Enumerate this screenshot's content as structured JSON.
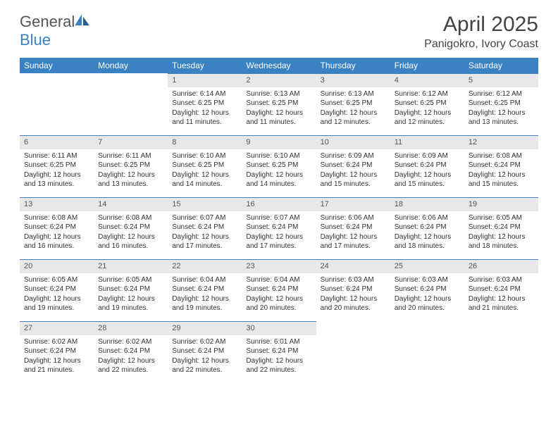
{
  "logo": {
    "text1": "General",
    "text2": "Blue"
  },
  "title": "April 2025",
  "location": "Panigokro, Ivory Coast",
  "colors": {
    "header_bg": "#3b82c4",
    "header_fg": "#ffffff",
    "daynum_bg": "#e8e8e8",
    "daynum_border": "#3b82c4",
    "body_bg": "#ffffff",
    "text": "#333333"
  },
  "weekdays": [
    "Sunday",
    "Monday",
    "Tuesday",
    "Wednesday",
    "Thursday",
    "Friday",
    "Saturday"
  ],
  "grid": {
    "rows": 5,
    "cols": 7,
    "first_weekday_index": 2,
    "days_in_month": 30
  },
  "days": [
    {
      "n": 1,
      "sunrise": "6:14 AM",
      "sunset": "6:25 PM",
      "daylight": "12 hours and 11 minutes."
    },
    {
      "n": 2,
      "sunrise": "6:13 AM",
      "sunset": "6:25 PM",
      "daylight": "12 hours and 11 minutes."
    },
    {
      "n": 3,
      "sunrise": "6:13 AM",
      "sunset": "6:25 PM",
      "daylight": "12 hours and 12 minutes."
    },
    {
      "n": 4,
      "sunrise": "6:12 AM",
      "sunset": "6:25 PM",
      "daylight": "12 hours and 12 minutes."
    },
    {
      "n": 5,
      "sunrise": "6:12 AM",
      "sunset": "6:25 PM",
      "daylight": "12 hours and 13 minutes."
    },
    {
      "n": 6,
      "sunrise": "6:11 AM",
      "sunset": "6:25 PM",
      "daylight": "12 hours and 13 minutes."
    },
    {
      "n": 7,
      "sunrise": "6:11 AM",
      "sunset": "6:25 PM",
      "daylight": "12 hours and 13 minutes."
    },
    {
      "n": 8,
      "sunrise": "6:10 AM",
      "sunset": "6:25 PM",
      "daylight": "12 hours and 14 minutes."
    },
    {
      "n": 9,
      "sunrise": "6:10 AM",
      "sunset": "6:25 PM",
      "daylight": "12 hours and 14 minutes."
    },
    {
      "n": 10,
      "sunrise": "6:09 AM",
      "sunset": "6:24 PM",
      "daylight": "12 hours and 15 minutes."
    },
    {
      "n": 11,
      "sunrise": "6:09 AM",
      "sunset": "6:24 PM",
      "daylight": "12 hours and 15 minutes."
    },
    {
      "n": 12,
      "sunrise": "6:08 AM",
      "sunset": "6:24 PM",
      "daylight": "12 hours and 15 minutes."
    },
    {
      "n": 13,
      "sunrise": "6:08 AM",
      "sunset": "6:24 PM",
      "daylight": "12 hours and 16 minutes."
    },
    {
      "n": 14,
      "sunrise": "6:08 AM",
      "sunset": "6:24 PM",
      "daylight": "12 hours and 16 minutes."
    },
    {
      "n": 15,
      "sunrise": "6:07 AM",
      "sunset": "6:24 PM",
      "daylight": "12 hours and 17 minutes."
    },
    {
      "n": 16,
      "sunrise": "6:07 AM",
      "sunset": "6:24 PM",
      "daylight": "12 hours and 17 minutes."
    },
    {
      "n": 17,
      "sunrise": "6:06 AM",
      "sunset": "6:24 PM",
      "daylight": "12 hours and 17 minutes."
    },
    {
      "n": 18,
      "sunrise": "6:06 AM",
      "sunset": "6:24 PM",
      "daylight": "12 hours and 18 minutes."
    },
    {
      "n": 19,
      "sunrise": "6:05 AM",
      "sunset": "6:24 PM",
      "daylight": "12 hours and 18 minutes."
    },
    {
      "n": 20,
      "sunrise": "6:05 AM",
      "sunset": "6:24 PM",
      "daylight": "12 hours and 19 minutes."
    },
    {
      "n": 21,
      "sunrise": "6:05 AM",
      "sunset": "6:24 PM",
      "daylight": "12 hours and 19 minutes."
    },
    {
      "n": 22,
      "sunrise": "6:04 AM",
      "sunset": "6:24 PM",
      "daylight": "12 hours and 19 minutes."
    },
    {
      "n": 23,
      "sunrise": "6:04 AM",
      "sunset": "6:24 PM",
      "daylight": "12 hours and 20 minutes."
    },
    {
      "n": 24,
      "sunrise": "6:03 AM",
      "sunset": "6:24 PM",
      "daylight": "12 hours and 20 minutes."
    },
    {
      "n": 25,
      "sunrise": "6:03 AM",
      "sunset": "6:24 PM",
      "daylight": "12 hours and 20 minutes."
    },
    {
      "n": 26,
      "sunrise": "6:03 AM",
      "sunset": "6:24 PM",
      "daylight": "12 hours and 21 minutes."
    },
    {
      "n": 27,
      "sunrise": "6:02 AM",
      "sunset": "6:24 PM",
      "daylight": "12 hours and 21 minutes."
    },
    {
      "n": 28,
      "sunrise": "6:02 AM",
      "sunset": "6:24 PM",
      "daylight": "12 hours and 22 minutes."
    },
    {
      "n": 29,
      "sunrise": "6:02 AM",
      "sunset": "6:24 PM",
      "daylight": "12 hours and 22 minutes."
    },
    {
      "n": 30,
      "sunrise": "6:01 AM",
      "sunset": "6:24 PM",
      "daylight": "12 hours and 22 minutes."
    }
  ],
  "labels": {
    "sunrise": "Sunrise:",
    "sunset": "Sunset:",
    "daylight": "Daylight:"
  }
}
